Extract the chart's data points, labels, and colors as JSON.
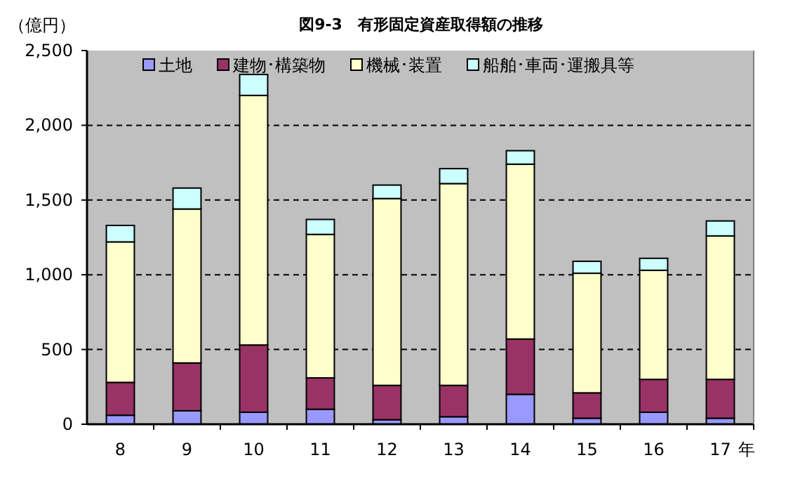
{
  "chart_data": {
    "type": "bar",
    "stacked": true,
    "title": "図9-3　有形固定資産取得額の推移",
    "ylabel": "（億円）",
    "xlabel": "年",
    "categories": [
      "8",
      "9",
      "10",
      "11",
      "12",
      "13",
      "14",
      "15",
      "16",
      "17"
    ],
    "series": [
      {
        "name": "土地",
        "color": "#9999ff",
        "values": [
          60,
          90,
          80,
          100,
          30,
          50,
          200,
          40,
          80,
          40
        ]
      },
      {
        "name": "建物･構築物",
        "color": "#993366",
        "values": [
          220,
          320,
          450,
          210,
          230,
          210,
          370,
          170,
          220,
          260
        ]
      },
      {
        "name": "機械･装置",
        "color": "#ffffcc",
        "values": [
          940,
          1030,
          1670,
          960,
          1250,
          1350,
          1170,
          800,
          730,
          960
        ]
      },
      {
        "name": "船舶･車両･運搬具等",
        "color": "#ccffff",
        "values": [
          110,
          140,
          140,
          100,
          90,
          100,
          90,
          80,
          80,
          100
        ]
      }
    ],
    "ylim": [
      0,
      2500
    ],
    "yticks": [
      {
        "value": 0,
        "label": "0"
      },
      {
        "value": 500,
        "label": "500"
      },
      {
        "value": 1000,
        "label": "1,000"
      },
      {
        "value": 1500,
        "label": "1,500"
      },
      {
        "value": 2000,
        "label": "2,000"
      },
      {
        "value": 2500,
        "label": "2,500"
      }
    ],
    "grid": "y",
    "legend": "top"
  }
}
